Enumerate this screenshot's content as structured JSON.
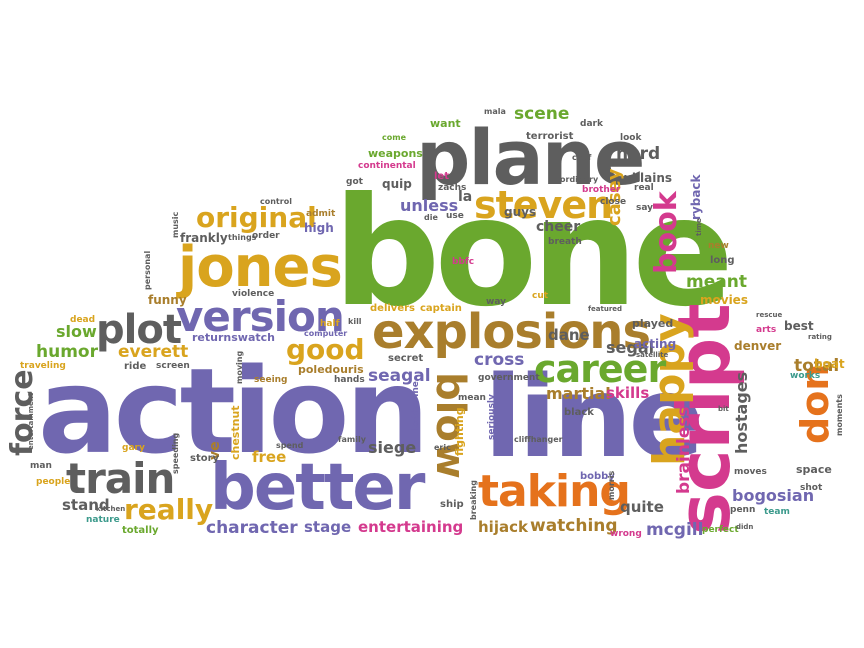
{
  "palette": {
    "purple": "#7067B0",
    "green": "#6AA82E",
    "gray": "#5E5E5E",
    "magenta": "#D43A8E",
    "orange": "#E5721C",
    "gold": "#D9A41E",
    "brown": "#A97E2C",
    "teal": "#3C9A8C",
    "red": "#C0392B",
    "olive": "#8B8A2A"
  },
  "words": [
    {
      "id": "bone",
      "text": "bone",
      "color": "green"
    },
    {
      "id": "action",
      "text": "action",
      "color": "purple"
    },
    {
      "id": "line",
      "text": "line",
      "color": "purple"
    },
    {
      "id": "plane",
      "text": "plane",
      "color": "gray"
    },
    {
      "id": "script",
      "text": "script",
      "color": "magenta"
    },
    {
      "id": "explosions",
      "text": "explosions",
      "color": "brown"
    },
    {
      "id": "jones",
      "text": "jones",
      "color": "gold"
    },
    {
      "id": "better",
      "text": "better",
      "color": "purple"
    },
    {
      "id": "taking",
      "text": "taking",
      "color": "orange"
    },
    {
      "id": "version",
      "text": "version",
      "color": "purple"
    },
    {
      "id": "happy",
      "text": "happy",
      "color": "gold"
    },
    {
      "id": "career",
      "text": "career",
      "color": "green"
    },
    {
      "id": "train",
      "text": "train",
      "color": "gray"
    },
    {
      "id": "steven",
      "text": "steven",
      "color": "gold"
    },
    {
      "id": "original",
      "text": "original",
      "color": "gold"
    },
    {
      "id": "plot",
      "text": "plot",
      "color": "gray"
    },
    {
      "id": "book",
      "text": "book",
      "color": "magenta"
    },
    {
      "id": "blow",
      "text": "blow",
      "color": "brown"
    },
    {
      "id": "don",
      "text": "don",
      "color": "orange"
    },
    {
      "id": "force",
      "text": "force",
      "color": "gray"
    },
    {
      "id": "good",
      "text": "good",
      "color": "gold"
    },
    {
      "id": "really",
      "text": "really",
      "color": "gold"
    },
    {
      "id": "scene",
      "text": "scene",
      "color": "green"
    },
    {
      "id": "hard",
      "text": "hard",
      "color": "gray"
    },
    {
      "id": "meant",
      "text": "meant",
      "color": "green"
    },
    {
      "id": "casey",
      "text": "casey",
      "color": "gold"
    },
    {
      "id": "brainless",
      "text": "brainless",
      "color": "magenta"
    },
    {
      "id": "character",
      "text": "character",
      "color": "purple"
    },
    {
      "id": "entertaining",
      "text": "entertaining",
      "color": "magenta"
    },
    {
      "id": "watching",
      "text": "watching",
      "color": "brown"
    },
    {
      "id": "mcgill",
      "text": "mcgill",
      "color": "purple"
    },
    {
      "id": "bogosian",
      "text": "bogosian",
      "color": "purple"
    },
    {
      "id": "hostages",
      "text": "hostages",
      "color": "gray"
    },
    {
      "id": "total",
      "text": "total",
      "color": "brown"
    },
    {
      "id": "segal",
      "text": "segal",
      "color": "gray"
    },
    {
      "id": "martial",
      "text": "martial",
      "color": "brown"
    },
    {
      "id": "skills",
      "text": "skills",
      "color": "magenta"
    },
    {
      "id": "seagal",
      "text": "seagal",
      "color": "purple"
    },
    {
      "id": "cross",
      "text": "cross",
      "color": "purple"
    },
    {
      "id": "dane",
      "text": "dane",
      "color": "gray"
    },
    {
      "id": "siege",
      "text": "siege",
      "color": "gray"
    },
    {
      "id": "stage",
      "text": "stage",
      "color": "purple"
    },
    {
      "id": "hijack",
      "text": "hijack",
      "color": "brown"
    },
    {
      "id": "everett",
      "text": "everett",
      "color": "gold"
    },
    {
      "id": "humor",
      "text": "humor",
      "color": "green"
    },
    {
      "id": "slow",
      "text": "slow",
      "color": "green"
    },
    {
      "id": "free",
      "text": "free",
      "color": "gold"
    },
    {
      "id": "stand",
      "text": "stand",
      "color": "gray"
    },
    {
      "id": "quite",
      "text": "quite",
      "color": "gray"
    },
    {
      "id": "unless",
      "text": "unless",
      "color": "purple"
    },
    {
      "id": "cheer",
      "text": "cheer",
      "color": "gray"
    },
    {
      "id": "guys",
      "text": "guys",
      "color": "gray"
    },
    {
      "id": "frankly",
      "text": "frankly",
      "color": "gray"
    },
    {
      "id": "high",
      "text": "high",
      "color": "purple"
    },
    {
      "id": "funny",
      "text": "funny",
      "color": "brown"
    },
    {
      "id": "returnswatch",
      "text": "returnswatch",
      "color": "purple"
    },
    {
      "id": "poledouris",
      "text": "poledouris",
      "color": "brown"
    },
    {
      "id": "delivers",
      "text": "delivers",
      "color": "gold"
    },
    {
      "id": "captain",
      "text": "captain",
      "color": "gold"
    },
    {
      "id": "fighting",
      "text": "fighting",
      "color": "gold"
    },
    {
      "id": "acting",
      "text": "acting",
      "color": "purple"
    },
    {
      "id": "played",
      "text": "played",
      "color": "gray"
    },
    {
      "id": "movies",
      "text": "movies",
      "color": "gold"
    },
    {
      "id": "best",
      "text": "best",
      "color": "gray"
    },
    {
      "id": "boat",
      "text": "boat",
      "color": "gold"
    },
    {
      "id": "denver",
      "text": "denver",
      "color": "brown"
    },
    {
      "id": "space",
      "text": "space",
      "color": "gray"
    },
    {
      "id": "villains",
      "text": "villains",
      "color": "gray"
    },
    {
      "id": "weapons",
      "text": "weapons",
      "color": "green"
    },
    {
      "id": "terrorist",
      "text": "terrorist",
      "color": "gray"
    },
    {
      "id": "want",
      "text": "want",
      "color": "green"
    },
    {
      "id": "quip",
      "text": "quip",
      "color": "gray"
    },
    {
      "id": "la",
      "text": "la",
      "color": "gray"
    },
    {
      "id": "ryback",
      "text": "ryback",
      "color": "purple"
    },
    {
      "id": "ve",
      "text": "ve",
      "color": "brown"
    },
    {
      "id": "chestnut",
      "text": "chestnut",
      "color": "gold"
    },
    {
      "id": "bobby",
      "text": "bobby",
      "color": "purple"
    },
    {
      "id": "ship",
      "text": "ship",
      "color": "gray"
    },
    {
      "id": "secret",
      "text": "secret",
      "color": "gray"
    },
    {
      "id": "black",
      "text": "black",
      "color": "gray"
    },
    {
      "id": "ride",
      "text": "ride",
      "color": "gray"
    },
    {
      "id": "story",
      "text": "story",
      "color": "gray"
    },
    {
      "id": "gary",
      "text": "gary",
      "color": "gold"
    },
    {
      "id": "totally",
      "text": "totally",
      "color": "green"
    },
    {
      "id": "nature",
      "text": "nature",
      "color": "teal"
    },
    {
      "id": "people",
      "text": "people",
      "color": "gold"
    },
    {
      "id": "man",
      "text": "man",
      "color": "gray"
    },
    {
      "id": "traveling",
      "text": "traveling",
      "color": "gold"
    },
    {
      "id": "dead",
      "text": "dead",
      "color": "gold"
    },
    {
      "id": "violence",
      "text": "violence",
      "color": "gray"
    },
    {
      "id": "long",
      "text": "long",
      "color": "gray"
    },
    {
      "id": "new",
      "text": "new",
      "color": "brown"
    },
    {
      "id": "penn",
      "text": "penn",
      "color": "gray"
    },
    {
      "id": "team",
      "text": "team",
      "color": "teal"
    },
    {
      "id": "perfect",
      "text": "perfect",
      "color": "green"
    },
    {
      "id": "shot",
      "text": "shot",
      "color": "gray"
    },
    {
      "id": "works",
      "text": "works",
      "color": "teal"
    },
    {
      "id": "arts",
      "text": "arts",
      "color": "magenta"
    },
    {
      "id": "moves",
      "text": "moves",
      "color": "gray"
    },
    {
      "id": "hands",
      "text": "hands",
      "color": "gray"
    },
    {
      "id": "seeing",
      "text": "seeing",
      "color": "brown"
    },
    {
      "id": "screen",
      "text": "screen",
      "color": "gray"
    },
    {
      "id": "katherine",
      "text": "katherine",
      "color": "purple"
    },
    {
      "id": "mean",
      "text": "mean",
      "color": "gray"
    },
    {
      "id": "government",
      "text": "government",
      "color": "gray"
    },
    {
      "id": "half",
      "text": "half",
      "color": "gold"
    },
    {
      "id": "kill",
      "text": "kill",
      "color": "gray"
    },
    {
      "id": "computer",
      "text": "computer",
      "color": "purple"
    },
    {
      "id": "way",
      "text": "way",
      "color": "gray"
    },
    {
      "id": "cut",
      "text": "cut",
      "color": "gold"
    },
    {
      "id": "bbfc",
      "text": "bbfc",
      "color": "magenta"
    },
    {
      "id": "breath",
      "text": "breath",
      "color": "gray"
    },
    {
      "id": "close",
      "text": "close",
      "color": "gray"
    },
    {
      "id": "say",
      "text": "say",
      "color": "gray"
    },
    {
      "id": "real",
      "text": "real",
      "color": "gray"
    },
    {
      "id": "brother",
      "text": "brother",
      "color": "magenta"
    },
    {
      "id": "look",
      "text": "look",
      "color": "gray"
    },
    {
      "id": "dark",
      "text": "dark",
      "color": "gray"
    },
    {
      "id": "continental",
      "text": "continental",
      "color": "magenta"
    },
    {
      "id": "come",
      "text": "come",
      "color": "green"
    },
    {
      "id": "got",
      "text": "got",
      "color": "gray"
    },
    {
      "id": "let",
      "text": "let",
      "color": "magenta"
    },
    {
      "id": "zachs",
      "text": "zachs",
      "color": "gray"
    },
    {
      "id": "use",
      "text": "use",
      "color": "gray"
    },
    {
      "id": "die",
      "text": "die",
      "color": "gray"
    },
    {
      "id": "control",
      "text": "control",
      "color": "gray"
    },
    {
      "id": "admit",
      "text": "admit",
      "color": "brown"
    },
    {
      "id": "order",
      "text": "order",
      "color": "gray"
    },
    {
      "id": "things",
      "text": "things",
      "color": "gray"
    },
    {
      "id": "music",
      "text": "music",
      "color": "gray"
    },
    {
      "id": "personal",
      "text": "personal",
      "color": "gray"
    },
    {
      "id": "chef",
      "text": "chef",
      "color": "gray"
    },
    {
      "id": "ordinary",
      "text": "ordinary",
      "color": "gray"
    },
    {
      "id": "speeding",
      "text": "speeding",
      "color": "gray"
    },
    {
      "id": "moving",
      "text": "moving",
      "color": "gray"
    },
    {
      "id": "family",
      "text": "family",
      "color": "gray"
    },
    {
      "id": "spend",
      "text": "spend",
      "color": "gray"
    },
    {
      "id": "eric",
      "text": "eric",
      "color": "gray"
    },
    {
      "id": "seriously",
      "text": "seriously",
      "color": "purple"
    },
    {
      "id": "cliffhanger",
      "text": "cliffhanger",
      "color": "gray"
    },
    {
      "id": "breaking",
      "text": "breaking",
      "color": "gray"
    },
    {
      "id": "morris",
      "text": "morris",
      "color": "gray"
    },
    {
      "id": "wrong",
      "text": "wrong",
      "color": "magenta"
    },
    {
      "id": "rescue",
      "text": "rescue",
      "color": "gray"
    },
    {
      "id": "satellite",
      "text": "satellite",
      "color": "gray"
    },
    {
      "id": "rating",
      "text": "rating",
      "color": "gray"
    },
    {
      "id": "moments",
      "text": "moments",
      "color": "gray"
    },
    {
      "id": "kitchen",
      "text": "kitchen",
      "color": "gray"
    },
    {
      "id": "entertainment",
      "text": "entertainment",
      "color": "gray"
    },
    {
      "id": "time",
      "text": "time",
      "color": "gray"
    },
    {
      "id": "mala",
      "text": "mala",
      "color": "gray"
    },
    {
      "id": "featured",
      "text": "featured",
      "color": "gray"
    },
    {
      "id": "bit",
      "text": "bit",
      "color": "gray"
    },
    {
      "id": "didn",
      "text": "didn",
      "color": "gray"
    }
  ]
}
